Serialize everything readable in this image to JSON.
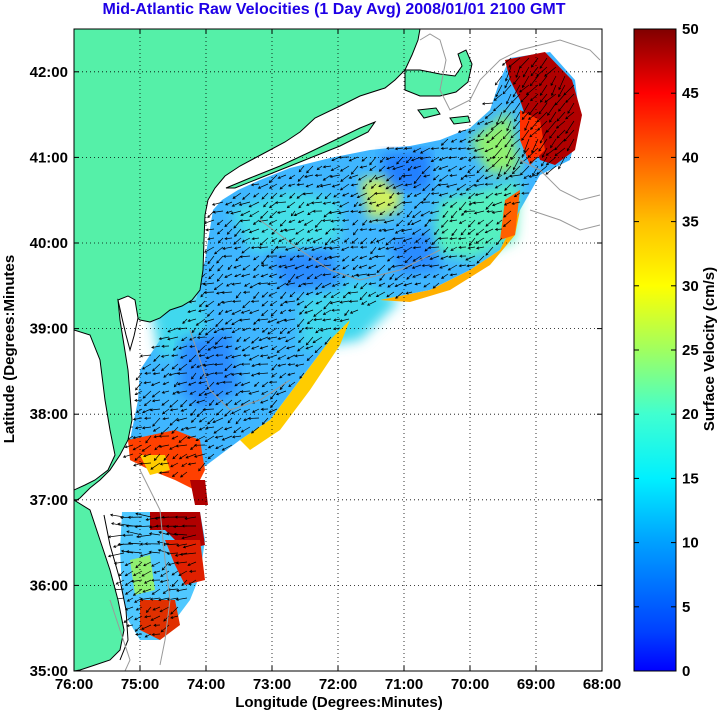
{
  "title": "Mid-Atlantic Raw Velocities (1 Day Avg) 2008/01/01 2100 GMT",
  "x_axis": {
    "label": "Longitude (Degrees:Minutes)",
    "ticks": [
      "76:00",
      "75:00",
      "74:00",
      "73:00",
      "72:00",
      "71:00",
      "70:00",
      "69:00",
      "68:00"
    ]
  },
  "y_axis": {
    "label": "Latitude (Degrees:Minutes",
    "ticks": [
      "35:00",
      "36:00",
      "37:00",
      "38:00",
      "39:00",
      "40:00",
      "41:00",
      "42:00"
    ]
  },
  "colorbar": {
    "label": "Surface Velocity (cm/s)",
    "ticks": [
      "0",
      "5",
      "10",
      "15",
      "20",
      "25",
      "30",
      "35",
      "40",
      "45",
      "50"
    ],
    "min": 0,
    "max": 50,
    "colormap": "jet"
  },
  "colors": {
    "land": "#55f0a8",
    "title": "#1f00e6",
    "coastline": "#000000",
    "bathymetry": "#999999",
    "ocean_background": "#ffffff"
  },
  "map": {
    "lon_range": [
      -76,
      -68
    ],
    "lat_range": [
      35,
      42.5
    ],
    "grid": "dotted"
  }
}
